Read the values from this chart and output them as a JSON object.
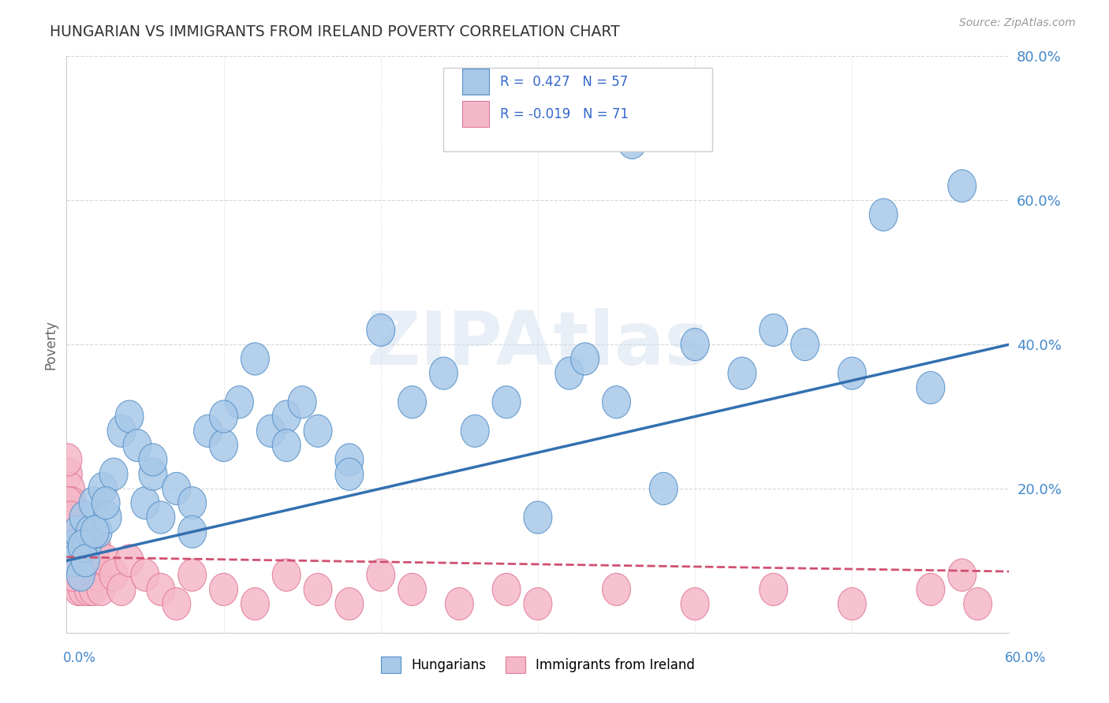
{
  "title": "HUNGARIAN VS IMMIGRANTS FROM IRELAND POVERTY CORRELATION CHART",
  "source": "Source: ZipAtlas.com",
  "ylabel": "Poverty",
  "r_hungarian": 0.427,
  "n_hungarian": 57,
  "r_ireland": -0.019,
  "n_ireland": 71,
  "watermark": "ZIPAtlas",
  "blue_color": "#A8C8E8",
  "pink_color": "#F5B8C8",
  "blue_edge_color": "#5590C8",
  "pink_edge_color": "#E07898",
  "blue_line_color": "#3370B0",
  "pink_line_color": "#D05070",
  "legend_r_color": "#3366CC",
  "title_color": "#333333",
  "axis_label_color": "#4488CC",
  "background_color": "#FFFFFF",
  "grid_color": "#CCCCCC",
  "hungarian_x": [
    0.3,
    0.5,
    0.7,
    0.9,
    1.1,
    1.3,
    1.5,
    1.7,
    2.0,
    2.3,
    2.6,
    3.0,
    3.5,
    4.0,
    4.5,
    5.0,
    5.5,
    6.0,
    7.0,
    8.0,
    9.0,
    10.0,
    11.0,
    12.0,
    13.0,
    14.0,
    15.0,
    16.0,
    18.0,
    20.0,
    22.0,
    24.0,
    26.0,
    28.0,
    30.0,
    32.0,
    33.0,
    35.0,
    36.0,
    38.0,
    40.0,
    43.0,
    45.0,
    47.0,
    50.0,
    52.0,
    55.0,
    57.0,
    1.0,
    1.2,
    1.8,
    2.5,
    5.5,
    8.0,
    10.0,
    14.0,
    18.0
  ],
  "hungarian_y": [
    12.0,
    10.0,
    14.0,
    8.0,
    16.0,
    12.0,
    14.0,
    18.0,
    14.0,
    20.0,
    16.0,
    22.0,
    28.0,
    30.0,
    26.0,
    18.0,
    22.0,
    16.0,
    20.0,
    18.0,
    28.0,
    26.0,
    32.0,
    38.0,
    28.0,
    30.0,
    32.0,
    28.0,
    24.0,
    42.0,
    32.0,
    36.0,
    28.0,
    32.0,
    16.0,
    36.0,
    38.0,
    32.0,
    68.0,
    20.0,
    40.0,
    36.0,
    42.0,
    40.0,
    36.0,
    58.0,
    34.0,
    62.0,
    12.0,
    10.0,
    14.0,
    18.0,
    24.0,
    14.0,
    30.0,
    26.0,
    22.0
  ],
  "ireland_x": [
    0.05,
    0.1,
    0.12,
    0.15,
    0.18,
    0.2,
    0.22,
    0.25,
    0.28,
    0.3,
    0.33,
    0.35,
    0.38,
    0.4,
    0.42,
    0.45,
    0.48,
    0.5,
    0.55,
    0.6,
    0.65,
    0.7,
    0.75,
    0.8,
    0.85,
    0.9,
    0.95,
    1.0,
    1.1,
    1.2,
    1.3,
    1.4,
    1.5,
    1.6,
    1.7,
    1.8,
    1.9,
    2.0,
    2.2,
    2.5,
    3.0,
    3.5,
    4.0,
    5.0,
    6.0,
    7.0,
    8.0,
    10.0,
    12.0,
    14.0,
    16.0,
    18.0,
    20.0,
    22.0,
    25.0,
    28.0,
    30.0,
    35.0,
    40.0,
    45.0,
    50.0,
    55.0,
    57.0,
    58.0,
    0.08,
    0.13,
    0.17,
    0.23,
    0.27,
    0.32,
    0.37
  ],
  "ireland_y": [
    10.0,
    22.0,
    14.0,
    16.0,
    18.0,
    12.0,
    8.0,
    20.0,
    16.0,
    14.0,
    12.0,
    18.0,
    10.0,
    16.0,
    14.0,
    8.0,
    12.0,
    10.0,
    14.0,
    8.0,
    12.0,
    10.0,
    6.0,
    8.0,
    12.0,
    10.0,
    8.0,
    6.0,
    10.0,
    8.0,
    12.0,
    6.0,
    10.0,
    8.0,
    6.0,
    10.0,
    12.0,
    8.0,
    6.0,
    10.0,
    8.0,
    6.0,
    10.0,
    8.0,
    6.0,
    4.0,
    8.0,
    6.0,
    4.0,
    8.0,
    6.0,
    4.0,
    8.0,
    6.0,
    4.0,
    6.0,
    4.0,
    6.0,
    4.0,
    6.0,
    4.0,
    6.0,
    8.0,
    4.0,
    24.0,
    18.0,
    12.0,
    14.0,
    16.0,
    10.0,
    8.0
  ],
  "xlim": [
    0,
    60
  ],
  "ylim": [
    0,
    80
  ],
  "ytick_vals": [
    0,
    20,
    40,
    60,
    80
  ],
  "ytick_labels": [
    "",
    "20.0%",
    "40.0%",
    "60.0%",
    "80.0%"
  ],
  "blue_trend_x0": 0,
  "blue_trend_y0": 10.0,
  "blue_trend_x1": 60,
  "blue_trend_y1": 40.0,
  "pink_trend_x0": 0,
  "pink_trend_y0": 10.5,
  "pink_trend_x1": 60,
  "pink_trend_y1": 8.5
}
